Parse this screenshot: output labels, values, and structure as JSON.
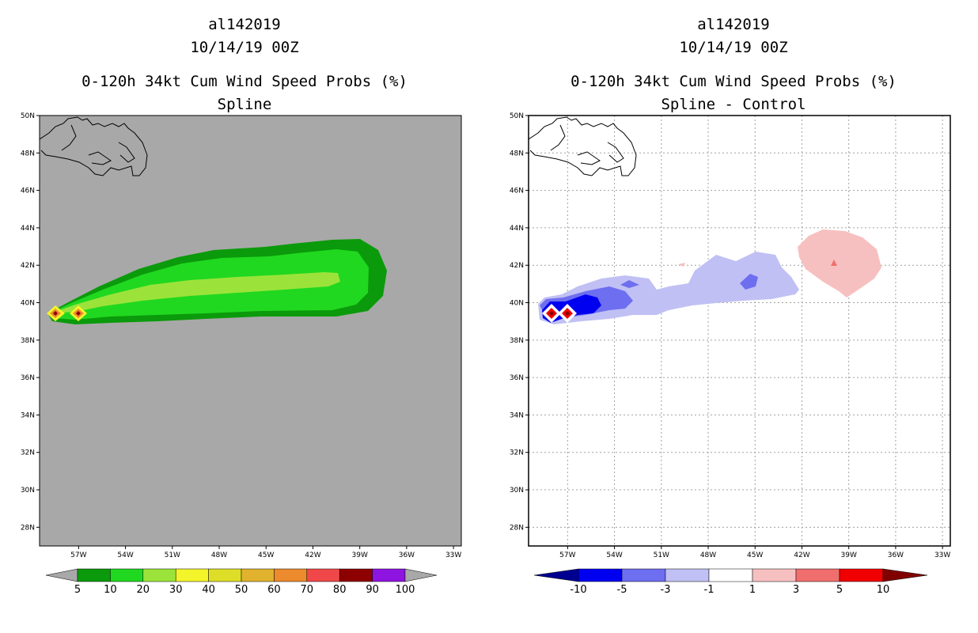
{
  "chart_data": [
    {
      "type": "contour-map",
      "title_lines": [
        "al142019",
        "10/14/19 00Z",
        "0-120h 34kt Cum Wind Speed Probs (%)",
        "Spline"
      ],
      "x_ticks": [
        "57W",
        "54W",
        "51W",
        "48W",
        "45W",
        "42W",
        "39W",
        "36W",
        "33W"
      ],
      "y_ticks": [
        "50N",
        "48N",
        "46N",
        "44N",
        "42N",
        "40N",
        "38N",
        "36N",
        "34N",
        "32N",
        "30N",
        "28N"
      ],
      "xlim_lon": [
        -59.5,
        -32.5
      ],
      "ylim_lat": [
        27,
        50
      ],
      "grid": false,
      "background": "#a8a8a8",
      "colorbar": {
        "labels": [
          "5",
          "10",
          "20",
          "30",
          "40",
          "50",
          "60",
          "70",
          "80",
          "90",
          "100"
        ],
        "colors": [
          "#0b9a0b",
          "#20d820",
          "#9be33a",
          "#f4f42a",
          "#dede28",
          "#e0b22e",
          "#ec8b2d",
          "#f04848",
          "#8e0000",
          "#8e14e0"
        ],
        "low_arrow": "#a8a8a8",
        "high_arrow": "#a8a8a8"
      }
    },
    {
      "type": "contour-map",
      "title_lines": [
        "al142019",
        "10/14/19 00Z",
        "0-120h 34kt Cum Wind Speed Probs (%)",
        "Spline - Control"
      ],
      "x_ticks": [
        "57W",
        "54W",
        "51W",
        "48W",
        "45W",
        "42W",
        "39W",
        "36W",
        "33W"
      ],
      "y_ticks": [
        "50N",
        "48N",
        "46N",
        "44N",
        "42N",
        "40N",
        "38N",
        "36N",
        "34N",
        "32N",
        "30N",
        "28N"
      ],
      "xlim_lon": [
        -59.5,
        -32.5
      ],
      "ylim_lat": [
        27,
        50
      ],
      "grid": true,
      "background": "#ffffff",
      "colorbar": {
        "labels": [
          "-10",
          "-5",
          "-3",
          "-1",
          "1",
          "3",
          "5",
          "10"
        ],
        "colors": [
          "#0000f0",
          "#6e6ef0",
          "#c0c0f4",
          "#ffffff",
          "#f7c0c0",
          "#f06e6e",
          "#f00000"
        ],
        "low_arrow": "#000090",
        "high_arrow": "#800000"
      }
    }
  ]
}
